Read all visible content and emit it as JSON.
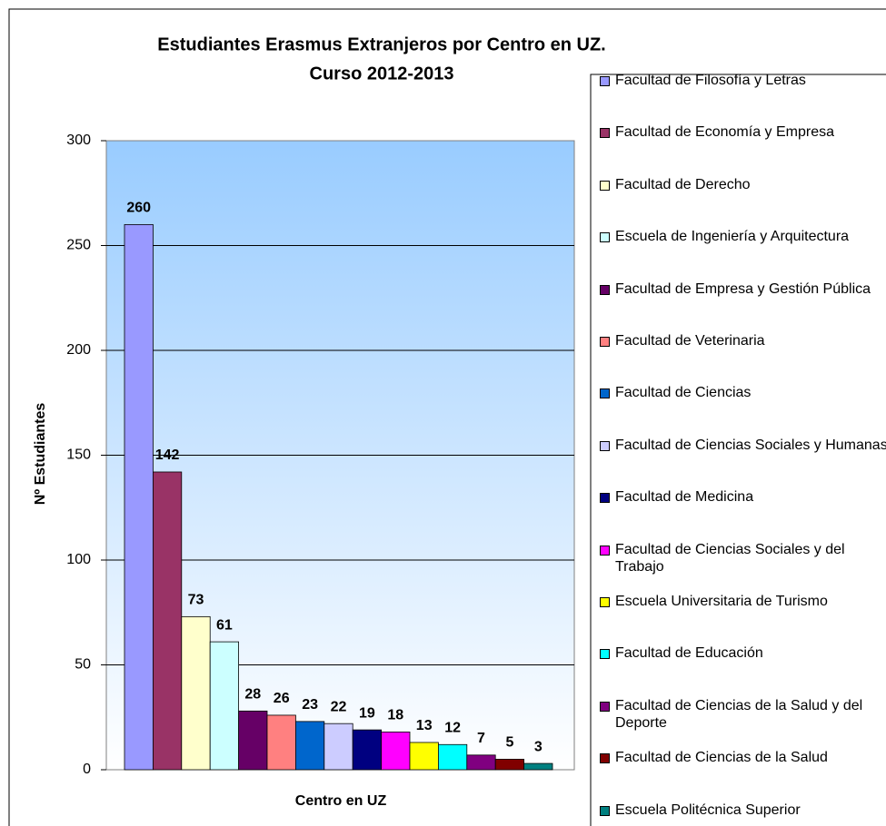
{
  "chart_data": {
    "type": "bar",
    "title": [
      "Estudiantes Erasmus Extranjeros por Centro en UZ.",
      "Curso 2012-2013"
    ],
    "y_label": "Nº Estudiantes",
    "x_label": "Centro en UZ",
    "categories": [
      "Facultad de Filosofía y Letras",
      "Facultad de Economía y Empresa",
      "Facultad de Derecho",
      "Escuela de Ingeniería y Arquitectura",
      "Facultad de Empresa y Gestión Pública",
      "Facultad de Veterinaria",
      "Facultad de Ciencias",
      "Facultad de Ciencias Sociales y Humanas",
      "Facultad de Medicina",
      "Facultad de Ciencias Sociales y del Trabajo",
      "Escuela Universitaria de Turismo",
      "Facultad de Educación",
      "Facultad de Ciencias de la Salud y del Deporte",
      "Facultad de Ciencias de la Salud",
      "Escuela Politécnica Superior"
    ],
    "values": [
      260,
      142,
      73,
      61,
      28,
      26,
      23,
      22,
      19,
      18,
      13,
      12,
      7,
      5,
      3
    ],
    "colors": [
      "#9999ff",
      "#993366",
      "#ffffcc",
      "#ccffff",
      "#660066",
      "#ff8080",
      "#0066cc",
      "#ccccff",
      "#000080",
      "#ff00ff",
      "#ffff00",
      "#00ffff",
      "#800080",
      "#800000",
      "#008080"
    ],
    "ylim": [
      0,
      300
    ],
    "yticks": [
      0,
      50,
      100,
      150,
      200,
      250,
      300
    ],
    "grid": true,
    "legend": "right"
  }
}
